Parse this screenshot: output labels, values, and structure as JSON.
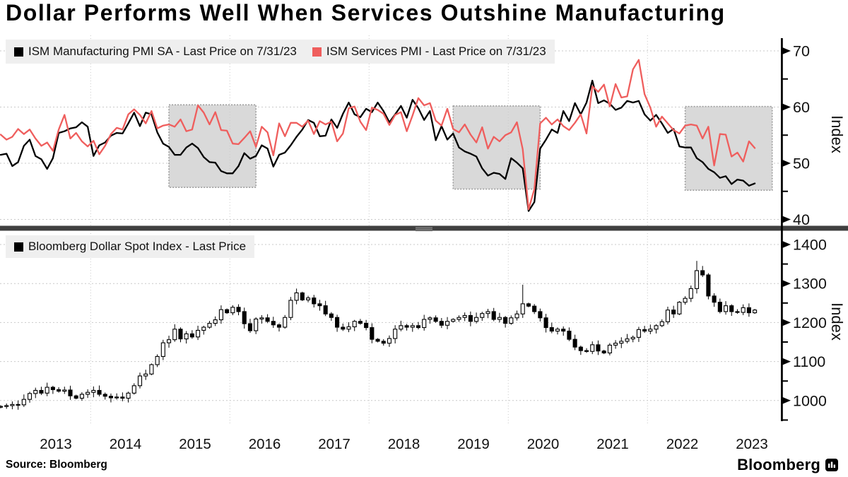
{
  "title": "Dollar Performs Well When Services Outshine Manufacturing",
  "source_label": "Source:  Bloomberg",
  "brand_name": "Bloomberg",
  "colors": {
    "manufacturing_line": "#000000",
    "services_line": "#ef5e5d",
    "candles": "#000000",
    "grid": "#c9c9c9",
    "region_fill": "#d9d9d9",
    "region_border": "#9e9e9e",
    "legend_bg": "#efefef",
    "divider": "#3f3f3f",
    "axis": "#000000"
  },
  "top_panel": {
    "legend": [
      {
        "label": "ISM Manufacturing PMI SA - Last Price on 7/31/23",
        "color": "#000000"
      },
      {
        "label": "ISM Services PMI - Last Price on 7/31/23",
        "color": "#ef5e5d"
      }
    ],
    "axis_title": "Index",
    "major_ticks": [
      70,
      60,
      50,
      40
    ],
    "minor_ticks": [
      65,
      55,
      45
    ]
  },
  "bottom_panel": {
    "legend": [
      {
        "label": "Bloomberg Dollar Spot Index - Last Price",
        "color": "#000000"
      }
    ],
    "axis_title": "Index",
    "major_ticks": [
      1400,
      1300,
      1200,
      1100,
      1000
    ],
    "minor_ticks": [
      1350,
      1250,
      1150,
      1050,
      950
    ]
  },
  "x_axis": {
    "years": [
      2013,
      2014,
      2015,
      2016,
      2017,
      2018,
      2019,
      2020,
      2021,
      2022,
      2023
    ],
    "grid_years": [
      2014,
      2016,
      2018,
      2020,
      2022
    ]
  },
  "chart_data": [
    {
      "type": "line",
      "panel": "top",
      "title": "ISM PMI lines",
      "start_month": "2012-09",
      "end_month": "2023-07",
      "frequency": "monthly",
      "ylim": [
        38,
        71
      ],
      "series": [
        {
          "name": "ISM Manufacturing PMI SA",
          "color": "#000000",
          "values": [
            51.5,
            51.7,
            49.5,
            50.2,
            53.1,
            54.2,
            51.3,
            50.7,
            49.0,
            50.9,
            55.4,
            55.7,
            56.2,
            56.4,
            57.3,
            56.5,
            51.3,
            53.2,
            53.7,
            54.9,
            55.4,
            55.3,
            57.1,
            59.0,
            56.6,
            59.0,
            58.7,
            55.5,
            53.5,
            52.9,
            51.5,
            51.5,
            52.8,
            53.5,
            52.7,
            51.1,
            50.2,
            50.1,
            48.6,
            48.2,
            48.2,
            49.5,
            51.8,
            50.8,
            51.3,
            53.2,
            52.6,
            49.4,
            51.5,
            51.9,
            53.2,
            54.7,
            56.0,
            57.7,
            57.2,
            54.8,
            54.9,
            57.8,
            56.3,
            58.8,
            60.8,
            58.7,
            58.2,
            59.7,
            59.1,
            60.8,
            59.3,
            57.3,
            58.7,
            60.2,
            58.1,
            61.3,
            59.8,
            57.7,
            59.3,
            54.1,
            56.6,
            54.2,
            55.3,
            52.8,
            52.1,
            51.7,
            51.2,
            49.1,
            47.8,
            48.3,
            48.1,
            47.2,
            50.9,
            50.1,
            49.1,
            41.5,
            43.1,
            52.6,
            54.2,
            56.0,
            55.4,
            59.3,
            57.5,
            60.7,
            58.7,
            60.8,
            64.7,
            60.7,
            61.2,
            60.6,
            59.5,
            59.9,
            61.1,
            60.8,
            61.1,
            58.7,
            57.6,
            58.6,
            57.1,
            55.4,
            56.1,
            53.0,
            52.8,
            52.8,
            50.9,
            50.2,
            49.0,
            48.4,
            47.4,
            47.7,
            46.3,
            47.1,
            46.9,
            46.0,
            46.4
          ]
        },
        {
          "name": "ISM Services PMI",
          "color": "#ef5e5d",
          "values": [
            55.1,
            54.2,
            54.7,
            56.1,
            55.2,
            56.0,
            54.4,
            53.1,
            53.7,
            52.2,
            56.0,
            58.6,
            54.4,
            55.4,
            53.9,
            53.0,
            54.0,
            51.6,
            53.1,
            55.2,
            56.3,
            56.0,
            58.7,
            59.6,
            58.6,
            57.1,
            59.3,
            56.2,
            56.7,
            56.9,
            56.5,
            57.8,
            55.7,
            56.0,
            60.3,
            59.0,
            56.9,
            59.1,
            55.9,
            55.8,
            53.5,
            53.4,
            54.5,
            55.7,
            52.9,
            56.5,
            55.5,
            51.4,
            57.1,
            54.8,
            57.2,
            57.2,
            56.5,
            57.6,
            55.2,
            57.5,
            56.9,
            57.4,
            53.9,
            55.3,
            59.8,
            60.1,
            57.4,
            55.9,
            59.9,
            59.5,
            58.8,
            56.8,
            58.6,
            59.1,
            55.7,
            58.5,
            61.6,
            60.3,
            60.7,
            57.6,
            56.7,
            59.7,
            56.1,
            55.5,
            56.9,
            55.1,
            53.7,
            56.4,
            52.6,
            54.7,
            53.9,
            55.0,
            55.5,
            57.3,
            52.5,
            41.8,
            45.4,
            57.1,
            58.1,
            56.9,
            57.8,
            56.6,
            55.9,
            57.2,
            58.7,
            55.3,
            63.7,
            62.7,
            64.0,
            60.1,
            64.1,
            61.7,
            61.9,
            66.7,
            68.4,
            62.3,
            59.9,
            56.5,
            58.3,
            57.1,
            55.9,
            55.3,
            56.7,
            56.9,
            56.7,
            54.4,
            56.5,
            49.6,
            55.2,
            55.1,
            51.2,
            51.9,
            50.3,
            53.9,
            52.7
          ]
        }
      ],
      "last_values": {
        "manufacturing": 46.4,
        "services": 52.7,
        "as_of": "7/31/23"
      },
      "highlight_regions": [
        {
          "start": "2015-02",
          "end": "2016-05",
          "top": 60.4,
          "bottom": 45.7
        },
        {
          "start": "2019-03",
          "end": "2020-06",
          "top": 60.2,
          "bottom": 45.4
        },
        {
          "start": "2022-07",
          "end": "2023-10",
          "top": 60.1,
          "bottom": 45.2
        }
      ]
    },
    {
      "type": "candlestick",
      "panel": "bottom",
      "name": "Bloomberg Dollar Spot Index",
      "start_month": "2012-09",
      "end_month": "2023-07",
      "frequency": "monthly",
      "ylim": [
        940,
        1410
      ],
      "first_open": 983,
      "closes": [
        985,
        987,
        990,
        989,
        1003,
        1018,
        1026,
        1019,
        1034,
        1028,
        1024,
        1027,
        1012,
        1006,
        1016,
        1021,
        1026,
        1016,
        1011,
        1007,
        1009,
        1006,
        1019,
        1038,
        1063,
        1068,
        1092,
        1113,
        1148,
        1156,
        1183,
        1158,
        1171,
        1163,
        1180,
        1188,
        1198,
        1207,
        1233,
        1225,
        1239,
        1228,
        1197,
        1179,
        1209,
        1212,
        1203,
        1194,
        1188,
        1213,
        1257,
        1276,
        1258,
        1263,
        1248,
        1243,
        1222,
        1213,
        1188,
        1183,
        1189,
        1203,
        1198,
        1187,
        1157,
        1152,
        1147,
        1159,
        1183,
        1192,
        1188,
        1192,
        1187,
        1208,
        1212,
        1203,
        1193,
        1203,
        1208,
        1213,
        1218,
        1203,
        1213,
        1223,
        1228,
        1208,
        1213,
        1198,
        1212,
        1222,
        1248,
        1242,
        1228,
        1212,
        1187,
        1178,
        1183,
        1178,
        1157,
        1137,
        1128,
        1126,
        1143,
        1127,
        1122,
        1142,
        1147,
        1152,
        1158,
        1162,
        1182,
        1178,
        1183,
        1192,
        1202,
        1232,
        1222,
        1252,
        1262,
        1287,
        1333,
        1322,
        1268,
        1252,
        1228,
        1243,
        1228,
        1226,
        1238,
        1225,
        1232
      ],
      "wick_spikes": [
        {
          "index": 90,
          "high": 1297
        },
        {
          "index": 120,
          "high": 1358
        },
        {
          "index": 121,
          "high": 1345
        }
      ]
    }
  ]
}
